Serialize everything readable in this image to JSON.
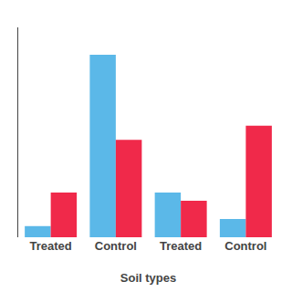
{
  "chart_data": {
    "type": "bar",
    "categories": [
      "Treated",
      "Control",
      "Treated",
      "Control"
    ],
    "series": [
      {
        "color": "#5BB8E8",
        "values": [
          0.55,
          9.0,
          2.2,
          0.9
        ]
      },
      {
        "color": "#F0294A",
        "values": [
          2.2,
          4.8,
          1.8,
          5.5
        ]
      }
    ],
    "xlabel": "Soil types",
    "ylim": [
      0,
      10.35
    ],
    "grid": false,
    "tick_labels": "x"
  }
}
